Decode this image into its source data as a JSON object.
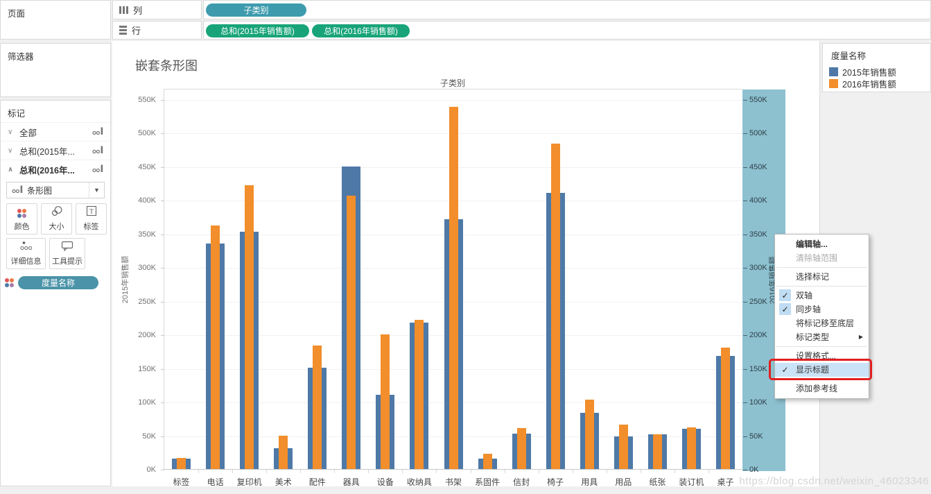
{
  "panels": {
    "pages": "页面",
    "filters": "筛选器",
    "marks": "标记"
  },
  "shelves": {
    "columns_label": "列",
    "rows_label": "行",
    "columns_pills": [
      "子类别"
    ],
    "rows_pills": [
      "总和(2015年销售额)",
      "总和(2016年销售额)"
    ]
  },
  "marks": {
    "rows": [
      {
        "name": "all",
        "label": "全部",
        "expanded": false,
        "bold": false
      },
      {
        "name": "sum-2015",
        "label": "总和(2015年...",
        "expanded": false,
        "bold": false
      },
      {
        "name": "sum-2016",
        "label": "总和(2016年...",
        "expanded": true,
        "bold": true
      }
    ],
    "mark_type": "条形图",
    "buttons": {
      "color": "颜色",
      "size": "大小",
      "label": "标签",
      "detail": "详细信息",
      "tooltip": "工具提示"
    },
    "shelf_pill": "度量名称"
  },
  "sheet": {
    "title": "嵌套条形图",
    "column_header": "子类别",
    "left_axis_label": "2015年销售额",
    "right_axis_label": "2016年销售额"
  },
  "legend": {
    "title": "度量名称",
    "items": [
      {
        "label": "2015年销售额",
        "color": "#4E79A7"
      },
      {
        "label": "2016年销售额",
        "color": "#F28E2B"
      }
    ]
  },
  "context_menu": {
    "items": [
      {
        "name": "edit-axis",
        "label": "编辑轴...",
        "bold": true
      },
      {
        "name": "clear-axis-range",
        "label": "清除轴范围",
        "disabled": true
      },
      {
        "type": "separator"
      },
      {
        "name": "select-marks",
        "label": "选择标记"
      },
      {
        "type": "separator"
      },
      {
        "name": "dual-axis",
        "label": "双轴",
        "checked": true
      },
      {
        "name": "synchronize-axis",
        "label": "同步轴",
        "checked": true
      },
      {
        "name": "move-marks-to-back",
        "label": "将标记移至底层"
      },
      {
        "name": "mark-type",
        "label": "标记类型",
        "submenu": true
      },
      {
        "type": "separator"
      },
      {
        "name": "format",
        "label": "设置格式..."
      },
      {
        "name": "show-header",
        "label": "显示标题",
        "checked": true,
        "highlighted": true,
        "annotated": true
      },
      {
        "type": "separator"
      },
      {
        "name": "add-reference-line",
        "label": "添加参考线"
      }
    ]
  },
  "watermark": "https://blog.csdn.net/weixin_46023346",
  "chart_data": {
    "type": "bar",
    "title": "嵌套条形图",
    "x_header": "子类别",
    "left_axis_label": "2015年销售额",
    "right_axis_label": "2016年销售额",
    "categories": [
      "标签",
      "电话",
      "复印机",
      "美术",
      "配件",
      "器具",
      "设备",
      "收纳具",
      "书架",
      "系固件",
      "信封",
      "椅子",
      "用具",
      "用品",
      "纸张",
      "装订机",
      "桌子"
    ],
    "series": [
      {
        "name": "2015年销售额",
        "color": "#4E79A7",
        "values": [
          15,
          335,
          353,
          31,
          151,
          450,
          110,
          218,
          371,
          15,
          53,
          410,
          84,
          48,
          52,
          60,
          168
        ]
      },
      {
        "name": "2016年销售额",
        "color": "#F28E2B",
        "values": [
          17,
          362,
          422,
          50,
          184,
          406,
          200,
          222,
          538,
          23,
          61,
          484,
          103,
          66,
          52,
          62,
          180
        ]
      }
    ],
    "unit": "K",
    "ylim": [
      0,
      566
    ],
    "ytick_step": 50,
    "ytick_labels": [
      "0K",
      "50K",
      "100K",
      "150K",
      "200K",
      "250K",
      "300K",
      "350K",
      "400K",
      "450K",
      "500K",
      "550K"
    ],
    "grid": true,
    "legend_position": "top-right",
    "selection_band_color": "#8DC1D0",
    "note": "dual axis bar-in-bar; right axis selected/highlighted"
  }
}
